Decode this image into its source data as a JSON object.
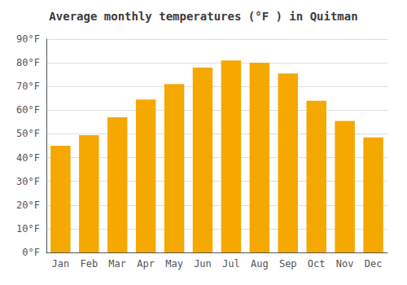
{
  "chart_data": {
    "type": "bar",
    "title": "Average monthly temperatures (°F ) in Quitman",
    "categories": [
      "Jan",
      "Feb",
      "Mar",
      "Apr",
      "May",
      "Jun",
      "Jul",
      "Aug",
      "Sep",
      "Oct",
      "Nov",
      "Dec"
    ],
    "values": [
      45,
      49.5,
      57,
      64.5,
      71,
      78,
      81,
      80,
      75.5,
      64,
      55.5,
      48.5
    ],
    "color": "#F5A800",
    "ylim": [
      0,
      90
    ],
    "yticks": [
      {
        "value": 0,
        "label": "0°F"
      },
      {
        "value": 10,
        "label": "10°F"
      },
      {
        "value": 20,
        "label": "20°F"
      },
      {
        "value": 30,
        "label": "30°F"
      },
      {
        "value": 40,
        "label": "40°F"
      },
      {
        "value": 50,
        "label": "50°F"
      },
      {
        "value": 60,
        "label": "60°F"
      },
      {
        "value": 70,
        "label": "70°F"
      },
      {
        "value": 80,
        "label": "80°F"
      },
      {
        "value": 90,
        "label": "90°F"
      }
    ],
    "grid": true
  }
}
